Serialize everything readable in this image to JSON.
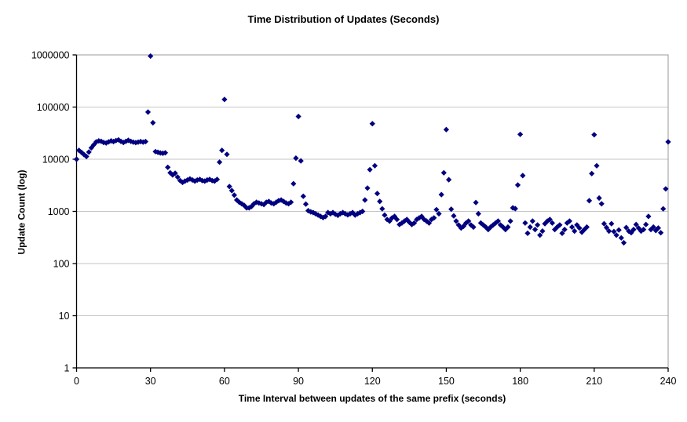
{
  "chart_data": {
    "type": "scatter",
    "title": "Time Distribution of Updates (Seconds)",
    "xlabel": "Time Interval between updates of the same prefix (seconds)",
    "ylabel": "Update Count (log)",
    "xlim": [
      0,
      240
    ],
    "ylim": [
      1,
      1000000
    ],
    "y_log_scale": true,
    "grid": "horizontal",
    "legend": "none",
    "x_ticks": [
      0,
      30,
      60,
      90,
      120,
      150,
      180,
      210,
      240
    ],
    "y_ticks": [
      1,
      10,
      100,
      1000,
      10000,
      100000,
      1000000
    ],
    "y_tick_labels": [
      "1",
      "10",
      "100",
      "1000",
      "10000",
      "100000",
      "1000000"
    ],
    "style": {
      "marker_shape": "diamond",
      "marker_color": "#000080",
      "grid_color": "#c6c6c6",
      "border_color": "#9a9a9a",
      "axis_color": "#000000",
      "background": "#ffffff"
    },
    "x": [
      0,
      1,
      2,
      3,
      4,
      5,
      6,
      7,
      8,
      9,
      10,
      11,
      12,
      13,
      14,
      15,
      16,
      17,
      18,
      19,
      20,
      21,
      22,
      23,
      24,
      25,
      26,
      27,
      28,
      29,
      30,
      31,
      32,
      33,
      34,
      35,
      36,
      37,
      38,
      39,
      40,
      41,
      42,
      43,
      44,
      45,
      46,
      47,
      48,
      49,
      50,
      51,
      52,
      53,
      54,
      55,
      56,
      57,
      58,
      59,
      60,
      61,
      62,
      63,
      64,
      65,
      66,
      67,
      68,
      69,
      70,
      71,
      72,
      73,
      74,
      75,
      76,
      77,
      78,
      79,
      80,
      81,
      82,
      83,
      84,
      85,
      86,
      87,
      88,
      89,
      90,
      91,
      92,
      93,
      94,
      95,
      96,
      97,
      98,
      99,
      100,
      101,
      102,
      103,
      104,
      105,
      106,
      107,
      108,
      109,
      110,
      111,
      112,
      113,
      114,
      115,
      116,
      117,
      118,
      119,
      120,
      121,
      122,
      123,
      124,
      125,
      126,
      127,
      128,
      129,
      130,
      131,
      132,
      133,
      134,
      135,
      136,
      137,
      138,
      139,
      140,
      141,
      142,
      143,
      144,
      145,
      146,
      147,
      148,
      149,
      150,
      151,
      152,
      153,
      154,
      155,
      156,
      157,
      158,
      159,
      160,
      161,
      162,
      163,
      164,
      165,
      166,
      167,
      168,
      169,
      170,
      171,
      172,
      173,
      174,
      175,
      176,
      177,
      178,
      179,
      180,
      181,
      182,
      183,
      184,
      185,
      186,
      187,
      188,
      189,
      190,
      191,
      192,
      193,
      194,
      195,
      196,
      197,
      198,
      199,
      200,
      201,
      202,
      203,
      204,
      205,
      206,
      207,
      208,
      209,
      210,
      211,
      212,
      213,
      214,
      215,
      216,
      217,
      218,
      219,
      220,
      221,
      222,
      223,
      224,
      225,
      226,
      227,
      228,
      229,
      230,
      231,
      232,
      233,
      234,
      235,
      236,
      237,
      238,
      239,
      240
    ],
    "y": [
      10000,
      14800,
      13500,
      12300,
      11300,
      13700,
      16500,
      19000,
      21500,
      22500,
      22000,
      21000,
      20500,
      21500,
      22500,
      21800,
      22800,
      23500,
      22000,
      21000,
      22000,
      23000,
      22000,
      21300,
      20800,
      21300,
      21800,
      21300,
      21800,
      80000,
      950000,
      50000,
      14000,
      13600,
      13200,
      13000,
      13300,
      7000,
      5500,
      5000,
      5400,
      4550,
      3900,
      3600,
      3800,
      4000,
      4200,
      4000,
      3800,
      4000,
      4100,
      3900,
      3800,
      4000,
      4100,
      3900,
      3800,
      4100,
      8800,
      14800,
      140000,
      12400,
      3000,
      2500,
      2050,
      1650,
      1500,
      1400,
      1300,
      1170,
      1170,
      1250,
      1400,
      1500,
      1450,
      1400,
      1350,
      1500,
      1550,
      1450,
      1400,
      1500,
      1600,
      1650,
      1550,
      1450,
      1400,
      1500,
      3400,
      10500,
      66000,
      9300,
      1950,
      1380,
      1030,
      980,
      950,
      900,
      850,
      800,
      760,
      800,
      950,
      900,
      950,
      880,
      840,
      900,
      950,
      900,
      860,
      900,
      950,
      850,
      900,
      950,
      1000,
      1650,
      2800,
      6300,
      48000,
      7500,
      2200,
      1550,
      1120,
      850,
      700,
      650,
      750,
      800,
      700,
      560,
      600,
      650,
      700,
      620,
      560,
      600,
      700,
      750,
      800,
      700,
      650,
      600,
      700,
      750,
      1080,
      900,
      2100,
      5500,
      37000,
      4050,
      1100,
      820,
      650,
      550,
      480,
      520,
      600,
      650,
      550,
      500,
      1480,
      900,
      600,
      550,
      500,
      450,
      500,
      550,
      600,
      650,
      550,
      500,
      450,
      500,
      650,
      1170,
      1130,
      3200,
      30000,
      4850,
      600,
      380,
      500,
      650,
      450,
      550,
      350,
      420,
      580,
      650,
      700,
      600,
      450,
      500,
      550,
      380,
      450,
      600,
      650,
      500,
      420,
      550,
      480,
      400,
      450,
      500,
      1600,
      5300,
      29500,
      7500,
      1800,
      1400,
      580,
      490,
      420,
      580,
      410,
      350,
      440,
      310,
      250,
      490,
      420,
      390,
      450,
      560,
      480,
      420,
      450,
      560,
      800,
      450,
      500,
      430,
      480,
      390,
      1120,
      2700,
      21500
    ]
  }
}
